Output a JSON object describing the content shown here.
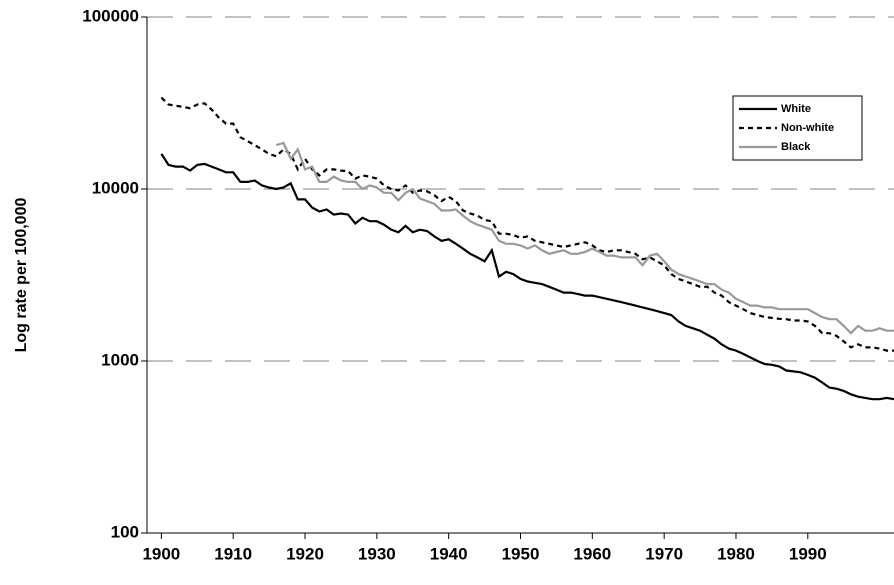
{
  "chart_data": {
    "type": "line",
    "y_label": "Log rate per 100,000",
    "log_y": true,
    "grid": true,
    "legend": "upper-right",
    "xlim": [
      1898,
      2002
    ],
    "xticks": [
      1900,
      1910,
      1920,
      1930,
      1940,
      1950,
      1960,
      1970,
      1980,
      1990
    ],
    "ylim": [
      100,
      100000
    ],
    "yticks": [
      100,
      1000,
      10000,
      100000
    ],
    "x": [
      1900,
      1901,
      1902,
      1903,
      1904,
      1905,
      1906,
      1907,
      1908,
      1909,
      1910,
      1911,
      1912,
      1913,
      1914,
      1915,
      1916,
      1917,
      1918,
      1919,
      1920,
      1921,
      1922,
      1923,
      1924,
      1925,
      1926,
      1927,
      1928,
      1929,
      1930,
      1931,
      1932,
      1933,
      1934,
      1935,
      1936,
      1937,
      1938,
      1939,
      1940,
      1941,
      1942,
      1943,
      1944,
      1945,
      1946,
      1947,
      1948,
      1949,
      1950,
      1951,
      1952,
      1953,
      1954,
      1955,
      1956,
      1957,
      1958,
      1959,
      1960,
      1961,
      1962,
      1963,
      1964,
      1965,
      1966,
      1967,
      1968,
      1969,
      1970,
      1971,
      1972,
      1973,
      1974,
      1975,
      1976,
      1977,
      1978,
      1979,
      1980,
      1981,
      1982,
      1983,
      1984,
      1985,
      1986,
      1987,
      1988,
      1989,
      1990,
      1991,
      1992,
      1993,
      1994,
      1995,
      1996,
      1997,
      1998,
      1999,
      2000,
      2001,
      2002
    ],
    "series": [
      {
        "name": "White",
        "color": "#000000",
        "linestyle": "solid",
        "values": [
          16000,
          13800,
          13500,
          13500,
          12800,
          13800,
          14000,
          13500,
          13000,
          12500,
          12500,
          11000,
          11000,
          11200,
          10500,
          10200,
          10000,
          10200,
          10800,
          8700,
          8700,
          7800,
          7400,
          7600,
          7100,
          7200,
          7100,
          6300,
          6800,
          6500,
          6500,
          6200,
          5800,
          5600,
          6100,
          5600,
          5800,
          5700,
          5300,
          5000,
          5100,
          4800,
          4500,
          4200,
          4000,
          3800,
          4400,
          3100,
          3300,
          3200,
          3000,
          2900,
          2850,
          2800,
          2700,
          2600,
          2500,
          2500,
          2450,
          2400,
          2400,
          2350,
          2300,
          2250,
          2200,
          2150,
          2100,
          2050,
          2000,
          1950,
          1900,
          1850,
          1700,
          1600,
          1550,
          1500,
          1420,
          1350,
          1250,
          1180,
          1150,
          1100,
          1050,
          1000,
          960,
          950,
          930,
          880,
          870,
          860,
          830,
          800,
          750,
          700,
          690,
          670,
          640,
          620,
          610,
          600,
          600,
          610,
          600
        ]
      },
      {
        "name": "Non-white",
        "color": "#000000",
        "linestyle": "dashed",
        "values": [
          34000,
          31000,
          30500,
          30000,
          29500,
          31000,
          31500,
          29000,
          26000,
          24000,
          24000,
          20000,
          19000,
          18000,
          17000,
          16000,
          15500,
          17000,
          16000,
          13000,
          15000,
          13000,
          12000,
          13000,
          13000,
          12800,
          12700,
          11500,
          12000,
          11800,
          11500,
          10500,
          10000,
          9800,
          10500,
          9500,
          9800,
          9700,
          9200,
          8500,
          9000,
          8500,
          7500,
          7200,
          7000,
          6600,
          6500,
          5500,
          5500,
          5400,
          5200,
          5300,
          5000,
          4900,
          4800,
          4700,
          4600,
          4700,
          4800,
          4900,
          4700,
          4400,
          4300,
          4400,
          4400,
          4300,
          4200,
          3900,
          4000,
          3800,
          3600,
          3200,
          3000,
          2900,
          2800,
          2700,
          2700,
          2500,
          2400,
          2200,
          2100,
          2000,
          1900,
          1850,
          1800,
          1780,
          1760,
          1750,
          1720,
          1720,
          1700,
          1600,
          1450,
          1450,
          1400,
          1300,
          1200,
          1250,
          1200,
          1200,
          1180,
          1150,
          1150
        ]
      },
      {
        "name": "Black",
        "color": "#999999",
        "linestyle": "solid",
        "values": [
          null,
          null,
          null,
          null,
          null,
          null,
          null,
          null,
          null,
          null,
          null,
          null,
          null,
          null,
          null,
          null,
          18000,
          18500,
          15000,
          17000,
          13000,
          13500,
          11000,
          11000,
          11800,
          11200,
          11000,
          11000,
          10000,
          10500,
          10200,
          9500,
          9500,
          8600,
          9500,
          10000,
          8800,
          8500,
          8200,
          7500,
          7500,
          7600,
          7000,
          6500,
          6200,
          6000,
          5800,
          5000,
          4800,
          4800,
          4700,
          4500,
          4700,
          4400,
          4200,
          4300,
          4400,
          4200,
          4200,
          4300,
          4500,
          4300,
          4100,
          4100,
          4000,
          4000,
          4000,
          3600,
          4100,
          4200,
          3800,
          3400,
          3200,
          3100,
          3000,
          2900,
          2800,
          2800,
          2600,
          2500,
          2300,
          2200,
          2100,
          2100,
          2050,
          2050,
          2000,
          2000,
          2000,
          2000,
          2000,
          1900,
          1800,
          1750,
          1750,
          1600,
          1450,
          1600,
          1500,
          1500,
          1550,
          1500,
          1500
        ]
      }
    ]
  }
}
